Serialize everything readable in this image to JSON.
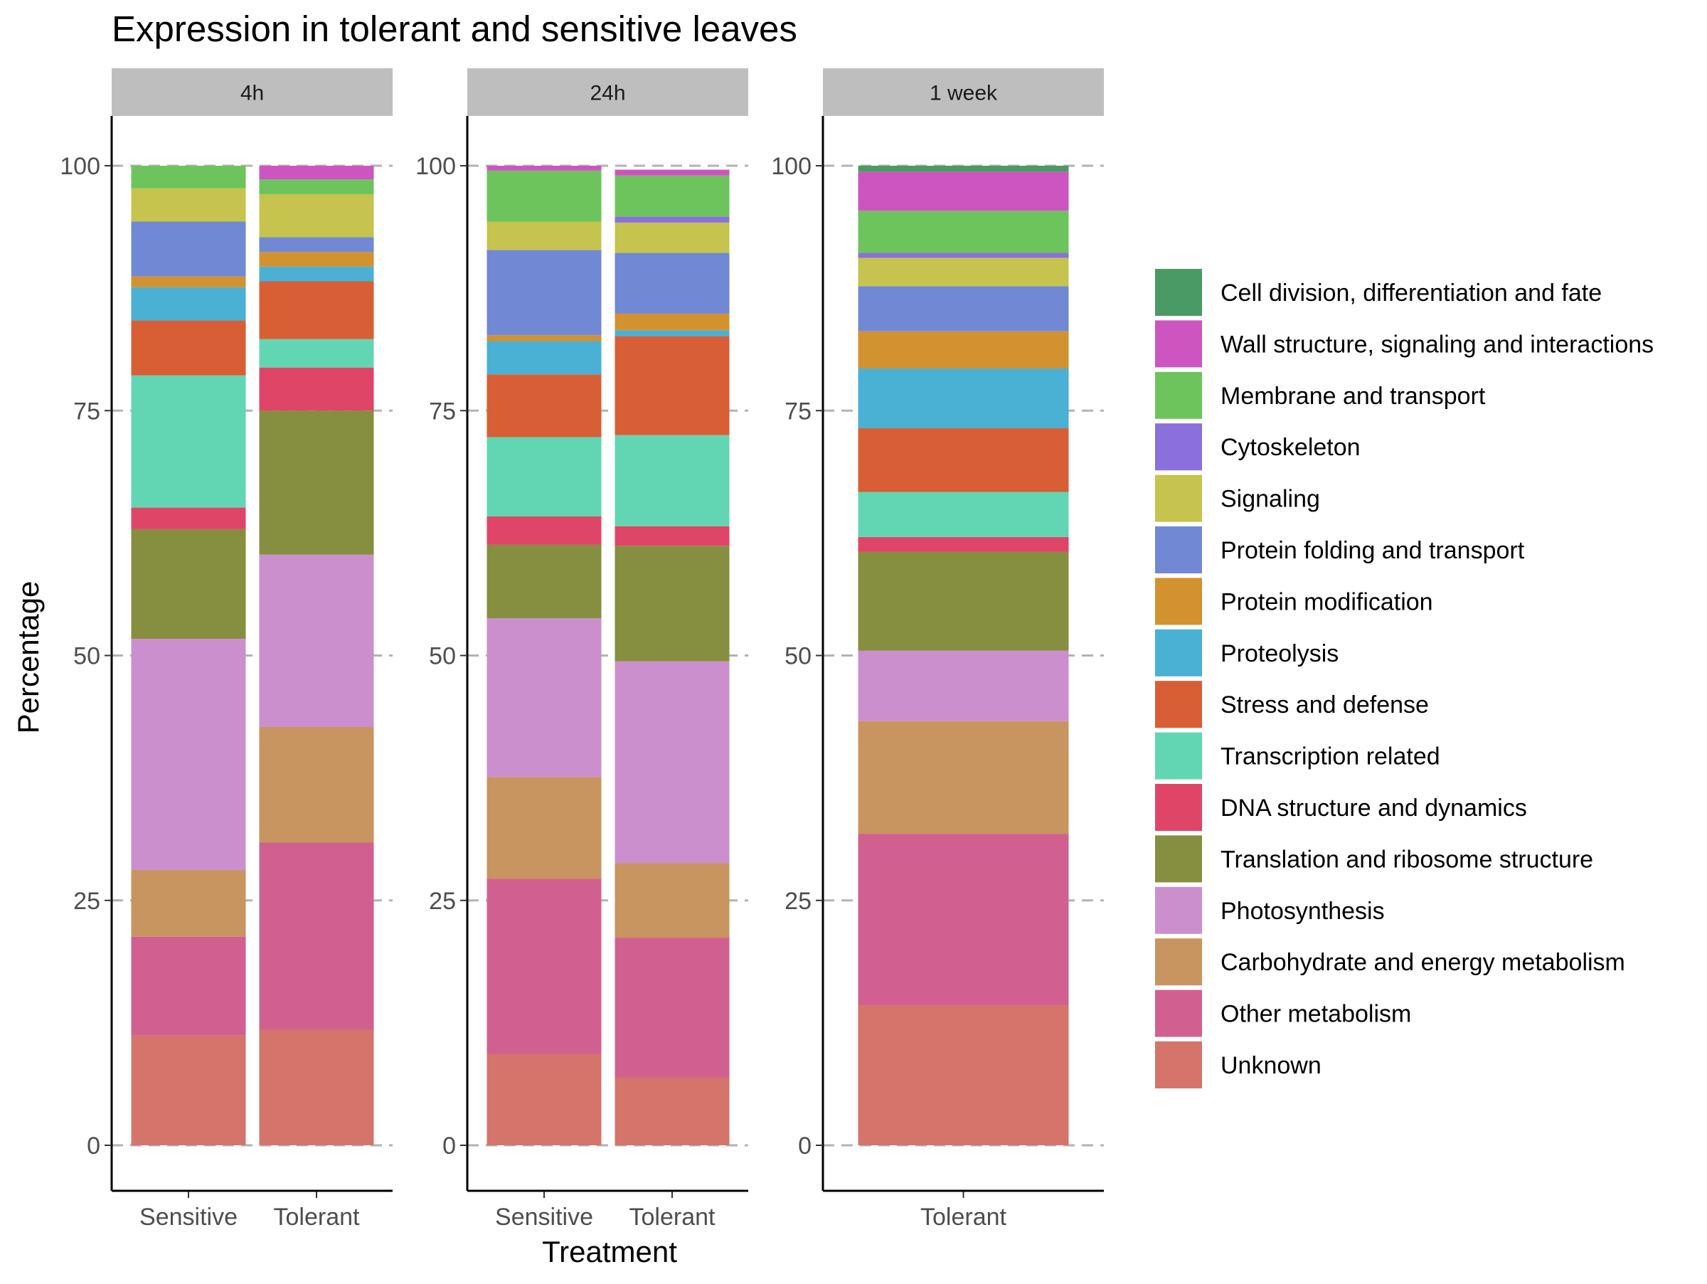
{
  "chart_data": {
    "type": "bar",
    "stacked": true,
    "title": "Expression in tolerant and sensitive leaves",
    "xlabel": "Treatment",
    "ylabel": "Percentage",
    "ylim": [
      0,
      105
    ],
    "yticks": [
      0,
      25,
      50,
      75,
      100
    ],
    "grid": "dashed horizontal at y ticks",
    "legend_position": "right",
    "facets": [
      {
        "label": "4h",
        "categories": [
          "Sensitive",
          "Tolerant"
        ],
        "values": {
          "Unknown": [
            11.2,
            11.8
          ],
          "Other metabolism": [
            10.1,
            19.1
          ],
          "Carbohydrate and energy metabolism": [
            6.8,
            11.8
          ],
          "Photosynthesis": [
            23.6,
            17.6
          ],
          "Translation and ribosome structure": [
            11.2,
            14.7
          ],
          "DNA structure and dynamics": [
            2.2,
            4.4
          ],
          "Transcription related": [
            13.5,
            2.9
          ],
          "Stress and defense": [
            5.6,
            5.9
          ],
          "Proteolysis": [
            3.4,
            1.5
          ],
          "Protein modification": [
            1.1,
            1.5
          ],
          "Protein folding and transport": [
            5.6,
            1.5
          ],
          "Signaling": [
            3.4,
            4.4
          ],
          "Cytoskeleton": [
            0,
            0
          ],
          "Membrane and transport": [
            2.3,
            1.5
          ],
          "Wall structure, signaling and interactions": [
            0,
            1.4
          ],
          "Cell division, differentiation and fate": [
            0,
            0
          ]
        }
      },
      {
        "label": "24h",
        "categories": [
          "Sensitive",
          "Tolerant"
        ],
        "values": {
          "Unknown": [
            9.3,
            6.9
          ],
          "Other metabolism": [
            17.9,
            14.3
          ],
          "Carbohydrate and energy metabolism": [
            10.4,
            7.6
          ],
          "Photosynthesis": [
            16.2,
            20.6
          ],
          "Translation and ribosome structure": [
            7.5,
            11.8
          ],
          "DNA structure and dynamics": [
            2.9,
            2.0
          ],
          "Transcription related": [
            8.1,
            9.3
          ],
          "Stress and defense": [
            6.4,
            10.1
          ],
          "Proteolysis": [
            3.4,
            0.6
          ],
          "Protein modification": [
            0.6,
            1.7
          ],
          "Protein folding and transport": [
            8.7,
            6.2
          ],
          "Signaling": [
            2.9,
            3.1
          ],
          "Cytoskeleton": [
            0,
            0.6
          ],
          "Membrane and transport": [
            5.2,
            4.2
          ],
          "Wall structure, signaling and interactions": [
            0.5,
            0.6
          ],
          "Cell division, differentiation and fate": [
            0,
            0
          ]
        }
      },
      {
        "label": "1 week",
        "categories": [
          "Tolerant"
        ],
        "values": {
          "Unknown": [
            14.3
          ],
          "Other metabolism": [
            17.5
          ],
          "Carbohydrate and energy metabolism": [
            11.5
          ],
          "Photosynthesis": [
            7.2
          ],
          "Translation and ribosome structure": [
            10.1
          ],
          "DNA structure and dynamics": [
            1.5
          ],
          "Transcription related": [
            4.6
          ],
          "Stress and defense": [
            6.5
          ],
          "Proteolysis": [
            6.1
          ],
          "Protein modification": [
            3.8
          ],
          "Protein folding and transport": [
            4.6
          ],
          "Signaling": [
            2.9
          ],
          "Cytoskeleton": [
            0.5
          ],
          "Membrane and transport": [
            4.3
          ],
          "Wall structure, signaling and interactions": [
            4.0
          ],
          "Cell division, differentiation and fate": [
            0.6
          ]
        }
      }
    ],
    "legend": [
      {
        "name": "Cell division, differentiation and fate",
        "color": "#4a9a63"
      },
      {
        "name": "Wall structure, signaling and interactions",
        "color": "#cc55bf"
      },
      {
        "name": "Membrane and transport",
        "color": "#6dc45c"
      },
      {
        "name": "Cytoskeleton",
        "color": "#8a70dc"
      },
      {
        "name": "Signaling",
        "color": "#c6c34f"
      },
      {
        "name": "Protein folding and transport",
        "color": "#7189d4"
      },
      {
        "name": "Protein modification",
        "color": "#d2922f"
      },
      {
        "name": "Proteolysis",
        "color": "#4ab0d4"
      },
      {
        "name": "Stress and defense",
        "color": "#d85e35"
      },
      {
        "name": "Transcription related",
        "color": "#62d6b2"
      },
      {
        "name": "DNA structure and dynamics",
        "color": "#df4567"
      },
      {
        "name": "Translation and ribosome structure",
        "color": "#868e40"
      },
      {
        "name": "Photosynthesis",
        "color": "#cb8fce"
      },
      {
        "name": "Carbohydrate and energy metabolism",
        "color": "#c8945f"
      },
      {
        "name": "Other metabolism",
        "color": "#d16090"
      },
      {
        "name": "Unknown",
        "color": "#d4746b"
      }
    ],
    "stack_order": [
      "Unknown",
      "Other metabolism",
      "Carbohydrate and energy metabolism",
      "Photosynthesis",
      "Translation and ribosome structure",
      "DNA structure and dynamics",
      "Transcription related",
      "Stress and defense",
      "Proteolysis",
      "Protein modification",
      "Protein folding and transport",
      "Signaling",
      "Cytoskeleton",
      "Membrane and transport",
      "Wall structure, signaling and interactions",
      "Cell division, differentiation and fate"
    ]
  },
  "colors": {
    "strip_background": "#bebebe",
    "grid": "#b3b3b3",
    "axis": "#000000"
  }
}
